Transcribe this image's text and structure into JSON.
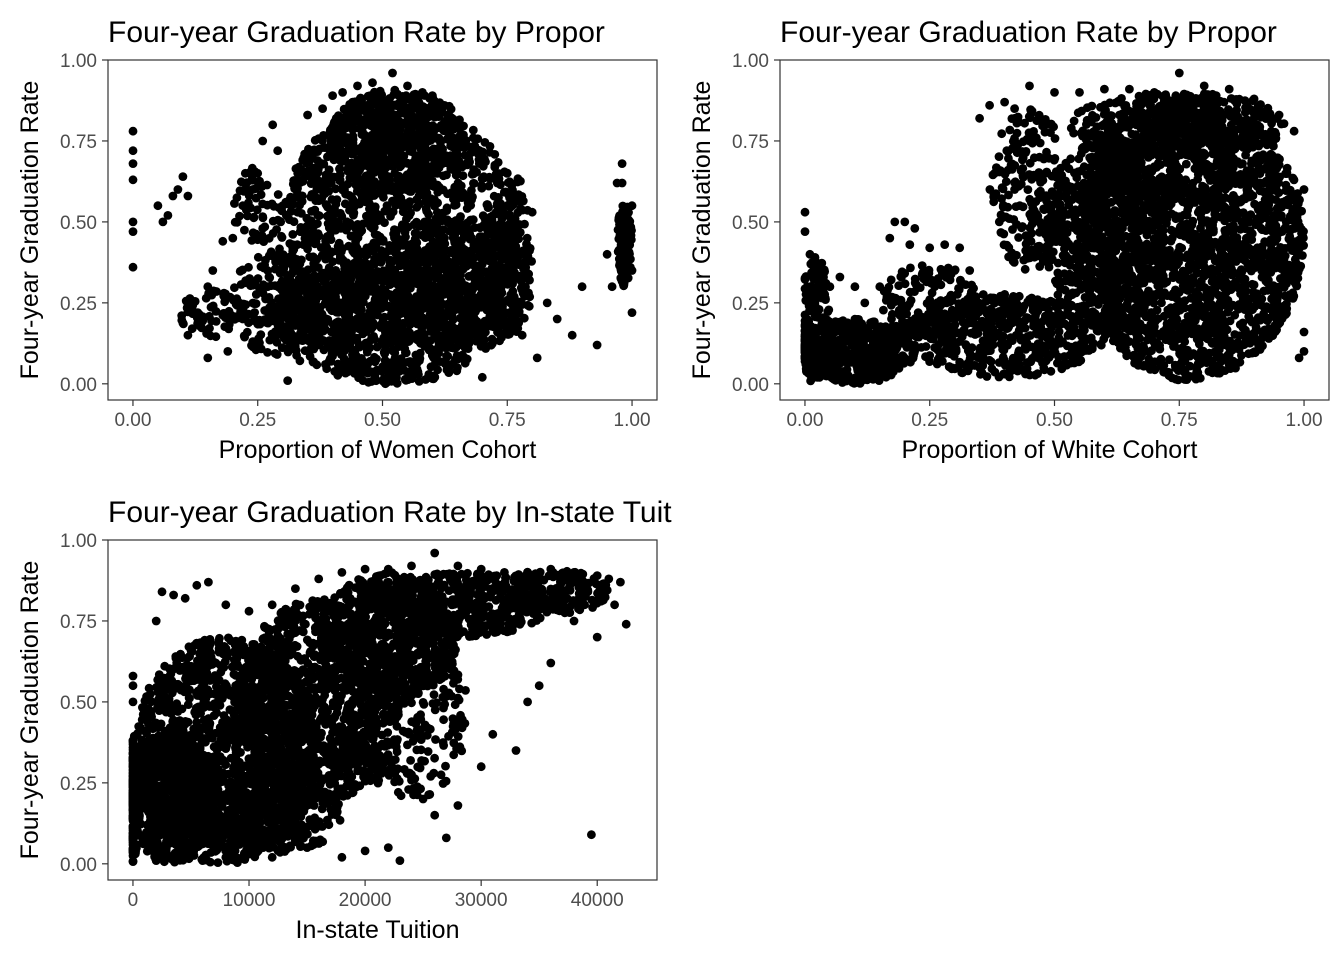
{
  "chart_data": [
    {
      "type": "scatter",
      "title": "Four-year Graduation Rate by Propor",
      "xlabel": "Proportion of Women Cohort",
      "ylabel": "Four-year Graduation Rate",
      "xlim": [
        -0.05,
        1.05
      ],
      "ylim": [
        -0.05,
        1.0
      ],
      "xticks": [
        0.0,
        0.25,
        0.5,
        0.75,
        1.0
      ],
      "xtick_labels": [
        "0.00",
        "0.25",
        "0.50",
        "0.75",
        "1.00"
      ],
      "yticks": [
        0.0,
        0.25,
        0.5,
        0.75,
        1.0
      ],
      "ytick_labels": [
        "0.00",
        "0.25",
        "0.50",
        "0.75",
        "1.00"
      ],
      "grid": false,
      "point_color": "#000000",
      "points": [
        [
          0.0,
          0.78
        ],
        [
          0.0,
          0.72
        ],
        [
          0.0,
          0.68
        ],
        [
          0.0,
          0.63
        ],
        [
          0.0,
          0.5
        ],
        [
          0.0,
          0.47
        ],
        [
          0.0,
          0.36
        ],
        [
          0.05,
          0.55
        ],
        [
          0.06,
          0.5
        ],
        [
          0.07,
          0.52
        ],
        [
          0.08,
          0.58
        ],
        [
          0.09,
          0.6
        ],
        [
          0.1,
          0.64
        ],
        [
          0.11,
          0.58
        ],
        [
          0.11,
          0.15
        ],
        [
          0.13,
          0.22
        ],
        [
          0.15,
          0.3
        ],
        [
          0.16,
          0.35
        ],
        [
          0.15,
          0.08
        ],
        [
          0.18,
          0.44
        ],
        [
          0.19,
          0.1
        ],
        [
          0.2,
          0.45
        ],
        [
          0.22,
          0.55
        ],
        [
          0.24,
          0.6
        ],
        [
          0.25,
          0.65
        ],
        [
          0.22,
          0.2
        ],
        [
          0.24,
          0.13
        ],
        [
          0.26,
          0.75
        ],
        [
          0.28,
          0.8
        ],
        [
          0.29,
          0.72
        ],
        [
          0.31,
          0.01
        ],
        [
          0.33,
          0.65
        ],
        [
          0.35,
          0.83
        ],
        [
          0.38,
          0.85
        ],
        [
          0.4,
          0.89
        ],
        [
          0.42,
          0.9
        ],
        [
          0.45,
          0.92
        ],
        [
          0.48,
          0.93
        ],
        [
          0.52,
          0.96
        ],
        [
          0.55,
          0.92
        ],
        [
          0.58,
          0.9
        ],
        [
          0.6,
          0.89
        ],
        [
          0.63,
          0.83
        ],
        [
          0.66,
          0.76
        ],
        [
          0.7,
          0.7
        ],
        [
          0.73,
          0.62
        ],
        [
          0.76,
          0.55
        ],
        [
          0.79,
          0.45
        ],
        [
          0.8,
          0.53
        ],
        [
          0.81,
          0.08
        ],
        [
          0.78,
          0.15
        ],
        [
          0.83,
          0.25
        ],
        [
          0.85,
          0.2
        ],
        [
          0.88,
          0.15
        ],
        [
          0.9,
          0.3
        ],
        [
          0.93,
          0.12
        ],
        [
          0.95,
          0.4
        ],
        [
          0.97,
          0.62
        ],
        [
          0.98,
          0.68
        ],
        [
          0.99,
          0.45
        ],
        [
          1.0,
          0.55
        ],
        [
          1.0,
          0.35
        ],
        [
          1.0,
          0.22
        ],
        [
          0.98,
          0.62
        ],
        [
          0.96,
          0.3
        ],
        [
          0.7,
          0.02
        ],
        [
          0.75,
          0.18
        ],
        [
          0.65,
          0.05
        ],
        [
          0.45,
          0.03
        ],
        [
          0.62,
          0.68
        ],
        [
          0.56,
          0.82
        ],
        [
          0.47,
          0.86
        ],
        [
          0.44,
          0.87
        ],
        [
          0.32,
          0.42
        ],
        [
          0.3,
          0.55
        ],
        [
          0.27,
          0.3
        ],
        [
          0.26,
          0.48
        ]
      ],
      "dense_regions": [
        {
          "cx": 0.535,
          "cy": 0.43,
          "rx": 0.25,
          "ry": 0.44,
          "n": 1700
        },
        {
          "cx": 0.53,
          "cy": 0.75,
          "rx": 0.14,
          "ry": 0.16,
          "n": 500
        },
        {
          "cx": 0.45,
          "cy": 0.2,
          "rx": 0.17,
          "ry": 0.18,
          "n": 400
        },
        {
          "cx": 0.68,
          "cy": 0.3,
          "rx": 0.12,
          "ry": 0.2,
          "n": 350
        },
        {
          "cx": 0.28,
          "cy": 0.25,
          "rx": 0.08,
          "ry": 0.17,
          "n": 160
        },
        {
          "cx": 0.25,
          "cy": 0.55,
          "rx": 0.05,
          "ry": 0.12,
          "n": 60
        },
        {
          "cx": 0.76,
          "cy": 0.4,
          "rx": 0.04,
          "ry": 0.25,
          "n": 90
        },
        {
          "cx": 0.985,
          "cy": 0.43,
          "rx": 0.015,
          "ry": 0.13,
          "n": 110
        },
        {
          "cx": 0.15,
          "cy": 0.22,
          "rx": 0.06,
          "ry": 0.08,
          "n": 60
        }
      ]
    },
    {
      "type": "scatter",
      "title": "Four-year Graduation Rate by Propor",
      "xlabel": "Proportion of White Cohort",
      "ylabel": "Four-year Graduation Rate",
      "xlim": [
        -0.05,
        1.05
      ],
      "ylim": [
        -0.05,
        1.0
      ],
      "xticks": [
        0.0,
        0.25,
        0.5,
        0.75,
        1.0
      ],
      "xtick_labels": [
        "0.00",
        "0.25",
        "0.50",
        "0.75",
        "1.00"
      ],
      "yticks": [
        0.0,
        0.25,
        0.5,
        0.75,
        1.0
      ],
      "ytick_labels": [
        "0.00",
        "0.25",
        "0.50",
        "0.75",
        "1.00"
      ],
      "grid": false,
      "point_color": "#000000",
      "points": [
        [
          0.0,
          0.53
        ],
        [
          0.0,
          0.47
        ],
        [
          0.01,
          0.4
        ],
        [
          0.02,
          0.36
        ],
        [
          0.05,
          0.3
        ],
        [
          0.07,
          0.33
        ],
        [
          0.1,
          0.3
        ],
        [
          0.12,
          0.25
        ],
        [
          0.15,
          0.3
        ],
        [
          0.17,
          0.45
        ],
        [
          0.18,
          0.5
        ],
        [
          0.2,
          0.5
        ],
        [
          0.21,
          0.43
        ],
        [
          0.22,
          0.48
        ],
        [
          0.25,
          0.42
        ],
        [
          0.28,
          0.43
        ],
        [
          0.3,
          0.35
        ],
        [
          0.33,
          0.35
        ],
        [
          0.35,
          0.82
        ],
        [
          0.37,
          0.86
        ],
        [
          0.4,
          0.87
        ],
        [
          0.42,
          0.85
        ],
        [
          0.45,
          0.92
        ],
        [
          0.5,
          0.9
        ],
        [
          0.55,
          0.9
        ],
        [
          0.6,
          0.91
        ],
        [
          0.65,
          0.91
        ],
        [
          0.7,
          0.9
        ],
        [
          0.75,
          0.96
        ],
        [
          0.8,
          0.92
        ],
        [
          0.85,
          0.91
        ],
        [
          0.9,
          0.88
        ],
        [
          0.95,
          0.83
        ],
        [
          0.98,
          0.78
        ],
        [
          1.0,
          0.6
        ],
        [
          1.0,
          0.16
        ],
        [
          1.0,
          0.1
        ],
        [
          0.99,
          0.08
        ],
        [
          0.4,
          0.03
        ],
        [
          0.35,
          0.05
        ],
        [
          0.45,
          0.75
        ],
        [
          0.38,
          0.65
        ],
        [
          0.42,
          0.6
        ],
        [
          0.47,
          0.7
        ],
        [
          0.1,
          0.15
        ],
        [
          0.05,
          0.08
        ],
        [
          0.2,
          0.18
        ],
        [
          0.26,
          0.3
        ],
        [
          0.31,
          0.42
        ]
      ],
      "dense_regions": [
        {
          "cx": 0.77,
          "cy": 0.45,
          "rx": 0.23,
          "ry": 0.44,
          "n": 2200
        },
        {
          "cx": 0.6,
          "cy": 0.45,
          "rx": 0.12,
          "ry": 0.3,
          "n": 500
        },
        {
          "cx": 0.75,
          "cy": 0.8,
          "rx": 0.22,
          "ry": 0.1,
          "n": 400
        },
        {
          "cx": 0.4,
          "cy": 0.15,
          "rx": 0.2,
          "ry": 0.13,
          "n": 500
        },
        {
          "cx": 0.1,
          "cy": 0.1,
          "rx": 0.12,
          "ry": 0.1,
          "n": 500
        },
        {
          "cx": 0.02,
          "cy": 0.2,
          "rx": 0.03,
          "ry": 0.2,
          "n": 150
        },
        {
          "cx": 0.45,
          "cy": 0.6,
          "rx": 0.08,
          "ry": 0.25,
          "n": 220
        },
        {
          "cx": 0.25,
          "cy": 0.25,
          "rx": 0.1,
          "ry": 0.12,
          "n": 160
        }
      ]
    },
    {
      "type": "scatter",
      "title": "Four-year Graduation Rate by In-state Tuition",
      "xlabel": "In-state Tuition",
      "ylabel": "Four-year Graduation Rate",
      "xlim": [
        -2150,
        45150
      ],
      "ylim": [
        -0.05,
        1.0
      ],
      "xticks": [
        0,
        10000,
        20000,
        30000,
        40000
      ],
      "xtick_labels": [
        "0",
        "10000",
        "20000",
        "30000",
        "40000"
      ],
      "yticks": [
        0.0,
        0.25,
        0.5,
        0.75,
        1.0
      ],
      "ytick_labels": [
        "0.00",
        "0.25",
        "0.50",
        "0.75",
        "1.00"
      ],
      "grid": false,
      "point_color": "#000000",
      "points": [
        [
          0,
          0.58
        ],
        [
          0,
          0.55
        ],
        [
          0,
          0.5
        ],
        [
          0,
          0.3
        ],
        [
          2000,
          0.75
        ],
        [
          2500,
          0.84
        ],
        [
          3500,
          0.83
        ],
        [
          4500,
          0.82
        ],
        [
          5500,
          0.86
        ],
        [
          6500,
          0.87
        ],
        [
          8000,
          0.8
        ],
        [
          10000,
          0.78
        ],
        [
          12000,
          0.8
        ],
        [
          14000,
          0.85
        ],
        [
          16000,
          0.88
        ],
        [
          18000,
          0.9
        ],
        [
          20000,
          0.91
        ],
        [
          22000,
          0.91
        ],
        [
          24000,
          0.92
        ],
        [
          26000,
          0.96
        ],
        [
          28000,
          0.92
        ],
        [
          30000,
          0.91
        ],
        [
          32000,
          0.9
        ],
        [
          34000,
          0.9
        ],
        [
          36000,
          0.91
        ],
        [
          38000,
          0.9
        ],
        [
          40000,
          0.89
        ],
        [
          41000,
          0.88
        ],
        [
          42000,
          0.87
        ],
        [
          42500,
          0.74
        ],
        [
          40000,
          0.7
        ],
        [
          39500,
          0.09
        ],
        [
          36000,
          0.62
        ],
        [
          34000,
          0.5
        ],
        [
          30000,
          0.3
        ],
        [
          28000,
          0.18
        ],
        [
          26000,
          0.15
        ],
        [
          25000,
          0.2
        ],
        [
          22000,
          0.05
        ],
        [
          23000,
          0.01
        ],
        [
          20000,
          0.04
        ],
        [
          18000,
          0.02
        ],
        [
          15000,
          0.05
        ],
        [
          12000,
          0.02
        ],
        [
          10000,
          0.03
        ],
        [
          8000,
          0.02
        ],
        [
          6000,
          0.01
        ],
        [
          4000,
          0.02
        ],
        [
          2000,
          0.01
        ],
        [
          27000,
          0.08
        ],
        [
          31000,
          0.4
        ],
        [
          33000,
          0.35
        ],
        [
          35000,
          0.55
        ],
        [
          38000,
          0.75
        ],
        [
          37000,
          0.8
        ],
        [
          41500,
          0.8
        ]
      ],
      "dense_regions": [
        {
          "cx": 8000,
          "cy": 0.35,
          "rx": 8000,
          "ry": 0.35,
          "n": 1400
        },
        {
          "cx": 3500,
          "cy": 0.2,
          "rx": 4000,
          "ry": 0.2,
          "n": 700
        },
        {
          "cx": 16000,
          "cy": 0.5,
          "rx": 7000,
          "ry": 0.32,
          "n": 1000
        },
        {
          "cx": 22000,
          "cy": 0.7,
          "rx": 6000,
          "ry": 0.2,
          "n": 650
        },
        {
          "cx": 28000,
          "cy": 0.8,
          "rx": 8000,
          "ry": 0.1,
          "n": 400
        },
        {
          "cx": 36000,
          "cy": 0.84,
          "rx": 5000,
          "ry": 0.07,
          "n": 220
        },
        {
          "cx": 24000,
          "cy": 0.45,
          "rx": 5000,
          "ry": 0.25,
          "n": 260
        },
        {
          "cx": 0,
          "cy": 0.2,
          "rx": 600,
          "ry": 0.2,
          "n": 200
        },
        {
          "cx": 12000,
          "cy": 0.15,
          "rx": 6000,
          "ry": 0.12,
          "n": 300
        }
      ]
    }
  ]
}
